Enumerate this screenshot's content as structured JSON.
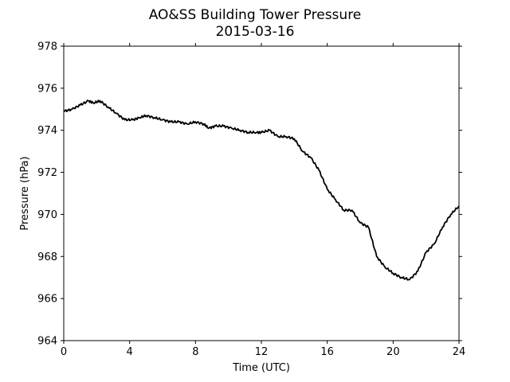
{
  "chart_data": {
    "type": "line",
    "title": "AO&SS Building Tower Pressure",
    "subtitle": "2015-03-16",
    "xlabel": "Time (UTC)",
    "ylabel": "Pressure (hPa)",
    "xlim": [
      0,
      24
    ],
    "ylim": [
      964,
      978
    ],
    "xticks": [
      0,
      4,
      8,
      12,
      16,
      20,
      24
    ],
    "yticks": [
      964,
      966,
      968,
      970,
      972,
      974,
      976,
      978
    ],
    "grid": false,
    "line_color": "#000000",
    "series": [
      {
        "x": [
          0,
          0.5,
          1,
          1.5,
          1.8,
          2.2,
          2.7,
          3.2,
          3.7,
          4.2,
          4.6,
          5.0,
          5.5,
          6.0,
          6.5,
          7.0,
          7.5,
          8.0,
          8.5,
          8.8,
          9.2,
          9.7,
          10.2,
          10.7,
          11.2,
          11.7,
          12.0,
          12.5,
          13.0,
          13.5,
          14.0,
          14.5,
          15.0,
          15.5,
          16.0,
          16.5,
          17.0,
          17.5,
          18.0,
          18.5,
          19.0,
          19.5,
          20.0,
          20.5,
          21.0,
          21.5,
          22.0,
          22.5,
          23.0,
          23.5,
          24.0
        ],
        "y": [
          974.9,
          975.0,
          975.2,
          975.4,
          975.3,
          975.4,
          975.1,
          974.8,
          974.5,
          974.5,
          974.6,
          974.7,
          974.6,
          974.5,
          974.4,
          974.4,
          974.3,
          974.4,
          974.3,
          974.1,
          974.2,
          974.2,
          974.1,
          974.0,
          973.9,
          973.9,
          973.9,
          974.0,
          973.7,
          973.7,
          973.6,
          973.0,
          972.7,
          972.1,
          971.2,
          970.7,
          970.2,
          970.2,
          969.6,
          969.4,
          968.0,
          967.5,
          967.2,
          967.0,
          966.9,
          967.3,
          968.2,
          968.6,
          969.4,
          970.0,
          970.4
        ]
      }
    ]
  }
}
